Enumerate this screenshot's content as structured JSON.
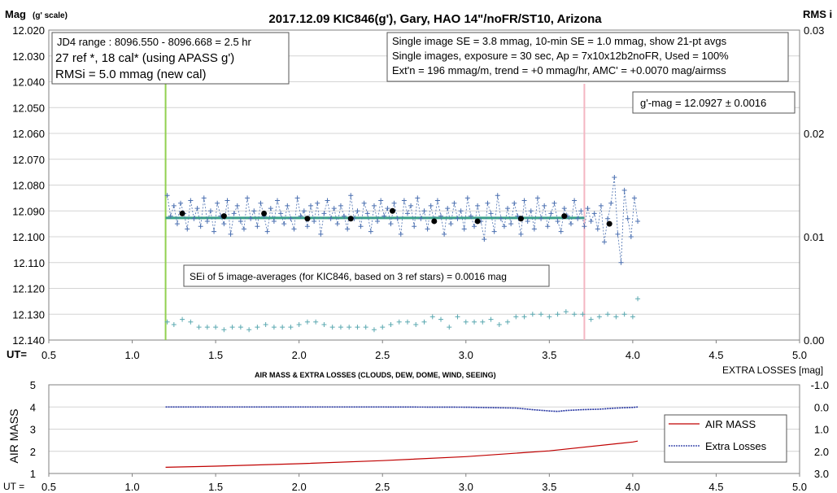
{
  "chart_data": [
    {
      "type": "scatter",
      "title": "2017.12.09  KIC846(g'),  Gary, HAO  14\"/noFR/ST10,  Arizona",
      "ylabel": "Mag",
      "ylabel_sub": "(g' scale)",
      "ylabel_right": "RMS i",
      "xlabel": "UT=",
      "xlim": [
        0.5,
        5.0
      ],
      "ylim": [
        12.02,
        12.14
      ],
      "y_inverted": true,
      "y2lim": [
        0.0,
        0.03
      ],
      "x_ticks": [
        "0.5",
        "1.0",
        "1.5",
        "2.0",
        "2.5",
        "3.0",
        "3.5",
        "4.0",
        "4.5",
        "5.0"
      ],
      "y_ticks": [
        "12.020",
        "12.030",
        "12.040",
        "12.050",
        "12.060",
        "12.070",
        "12.080",
        "12.090",
        "12.100",
        "12.110",
        "12.120",
        "12.130",
        "12.140"
      ],
      "y2_ticks": [
        "0.03",
        "0.02",
        "0.01",
        "0.00"
      ],
      "grid": true,
      "vlines": [
        {
          "x": 1.2,
          "color": "#92d050"
        },
        {
          "x": 3.71,
          "color": "#f4b6c2"
        }
      ],
      "fit_line": {
        "x": [
          1.2,
          3.71
        ],
        "y": 12.0927,
        "color": "#3aa089"
      },
      "series": [
        {
          "name": "single images",
          "color": "#4a6fb0",
          "x": [
            1.21,
            1.23,
            1.25,
            1.27,
            1.29,
            1.31,
            1.33,
            1.35,
            1.37,
            1.39,
            1.41,
            1.43,
            1.45,
            1.47,
            1.49,
            1.51,
            1.53,
            1.55,
            1.57,
            1.59,
            1.61,
            1.63,
            1.65,
            1.67,
            1.69,
            1.71,
            1.73,
            1.75,
            1.77,
            1.79,
            1.81,
            1.83,
            1.85,
            1.87,
            1.89,
            1.91,
            1.93,
            1.95,
            1.97,
            1.99,
            2.01,
            2.03,
            2.05,
            2.07,
            2.09,
            2.11,
            2.13,
            2.15,
            2.17,
            2.19,
            2.21,
            2.23,
            2.25,
            2.27,
            2.29,
            2.31,
            2.33,
            2.35,
            2.37,
            2.39,
            2.41,
            2.43,
            2.45,
            2.47,
            2.49,
            2.51,
            2.53,
            2.55,
            2.57,
            2.59,
            2.61,
            2.63,
            2.65,
            2.67,
            2.69,
            2.71,
            2.73,
            2.75,
            2.77,
            2.79,
            2.81,
            2.83,
            2.85,
            2.87,
            2.89,
            2.91,
            2.93,
            2.95,
            2.97,
            2.99,
            3.01,
            3.03,
            3.05,
            3.07,
            3.09,
            3.11,
            3.13,
            3.15,
            3.17,
            3.19,
            3.21,
            3.23,
            3.25,
            3.27,
            3.29,
            3.31,
            3.33,
            3.35,
            3.37,
            3.39,
            3.41,
            3.43,
            3.45,
            3.47,
            3.49,
            3.51,
            3.53,
            3.55,
            3.57,
            3.59,
            3.61,
            3.63,
            3.65,
            3.67,
            3.69,
            3.71,
            3.73,
            3.75,
            3.77,
            3.79,
            3.81,
            3.83,
            3.85,
            3.87,
            3.89,
            3.91,
            3.93,
            3.95,
            3.97,
            3.99,
            4.01,
            4.03
          ],
          "y": [
            12.084,
            12.092,
            12.088,
            12.095,
            12.087,
            12.091,
            12.097,
            12.086,
            12.093,
            12.089,
            12.096,
            12.085,
            12.094,
            12.09,
            12.098,
            12.087,
            12.092,
            12.095,
            12.086,
            12.099,
            12.091,
            12.088,
            12.094,
            12.097,
            12.085,
            12.093,
            12.09,
            12.096,
            12.087,
            12.092,
            12.098,
            12.089,
            12.094,
            12.086,
            12.091,
            12.095,
            12.088,
            12.093,
            12.097,
            12.085,
            12.092,
            12.09,
            12.096,
            12.088,
            12.094,
            12.087,
            12.099,
            12.091,
            12.086,
            12.093,
            12.089,
            12.095,
            12.088,
            12.092,
            12.097,
            12.084,
            12.093,
            12.09,
            12.096,
            12.087,
            12.091,
            12.098,
            12.088,
            12.094,
            12.086,
            12.092,
            12.089,
            12.095,
            12.087,
            12.093,
            12.099,
            12.086,
            12.091,
            12.088,
            12.096,
            12.085,
            12.093,
            12.09,
            12.097,
            12.088,
            12.094,
            12.086,
            12.092,
            12.099,
            12.089,
            12.095,
            12.087,
            12.093,
            12.09,
            12.097,
            12.085,
            12.092,
            12.096,
            12.088,
            12.094,
            12.101,
            12.087,
            12.091,
            12.098,
            12.084,
            12.093,
            12.096,
            12.089,
            12.095,
            12.087,
            12.092,
            12.099,
            12.086,
            12.094,
            12.09,
            12.097,
            12.085,
            12.093,
            12.088,
            12.096,
            12.091,
            12.087,
            12.094,
            12.098,
            12.089,
            12.092,
            12.095,
            12.086,
            12.093,
            12.09,
            12.096,
            12.089,
            12.094,
            12.091,
            12.097,
            12.088,
            12.102,
            12.093,
            12.087,
            12.077,
            12.099,
            12.11,
            12.082,
            12.093,
            12.1,
            12.085,
            12.094
          ]
        },
        {
          "name": "21-pt avgs",
          "color": "#000000",
          "x": [
            1.3,
            1.55,
            1.79,
            2.05,
            2.31,
            2.56,
            2.81,
            3.07,
            3.33,
            3.59,
            3.86
          ],
          "y": [
            12.091,
            12.092,
            12.091,
            12.093,
            12.093,
            12.09,
            12.094,
            12.094,
            12.093,
            12.092,
            12.095
          ]
        },
        {
          "name": "extra losses trace",
          "color": "#5aa8b0",
          "x": [
            1.21,
            1.25,
            1.3,
            1.35,
            1.4,
            1.45,
            1.5,
            1.55,
            1.6,
            1.65,
            1.7,
            1.75,
            1.8,
            1.85,
            1.9,
            1.95,
            2.0,
            2.05,
            2.1,
            2.15,
            2.2,
            2.25,
            2.3,
            2.35,
            2.4,
            2.45,
            2.5,
            2.55,
            2.6,
            2.65,
            2.7,
            2.75,
            2.8,
            2.85,
            2.9,
            2.95,
            3.0,
            3.05,
            3.1,
            3.15,
            3.2,
            3.25,
            3.3,
            3.35,
            3.4,
            3.45,
            3.5,
            3.55,
            3.6,
            3.65,
            3.7,
            3.75,
            3.8,
            3.85,
            3.9,
            3.95,
            4.0,
            4.03
          ],
          "y": [
            12.133,
            12.134,
            12.132,
            12.133,
            12.135,
            12.135,
            12.135,
            12.136,
            12.135,
            12.135,
            12.136,
            12.135,
            12.134,
            12.135,
            12.135,
            12.135,
            12.134,
            12.133,
            12.133,
            12.134,
            12.135,
            12.135,
            12.135,
            12.135,
            12.135,
            12.136,
            12.135,
            12.134,
            12.133,
            12.133,
            12.134,
            12.133,
            12.131,
            12.132,
            12.135,
            12.131,
            12.133,
            12.133,
            12.133,
            12.132,
            12.134,
            12.133,
            12.131,
            12.131,
            12.13,
            12.13,
            12.131,
            12.13,
            12.129,
            12.13,
            12.13,
            12.132,
            12.131,
            12.13,
            12.131,
            12.13,
            12.131,
            12.124
          ]
        }
      ],
      "annotations": {
        "jd_range": "JD4 range : 8096.550 - 8096.668 = 2.5  hr",
        "ref_stars": "27 ref *, 18 cal* (using APASS g')",
        "rmsi": "RMSi = 5.0 mmag (new cal)",
        "se_line1": "Single image SE = 3.8 mmag, 10-min SE = 1.0 mmag, show  21-pt avgs",
        "se_line2": "Single images, exposure = 30 sec, Ap = 7x10x12b2noFR,  Used = 100%",
        "se_line3": "Ext'n = 196 mmag/m, trend =  +0 mmag/hr, AMC' = +0.0070 mag/airmss",
        "gmag": "g'-mag = 12.0927 ± 0.0016",
        "sei": "SEi of 5 image-averages (for KIC846, based on 3 ref stars) = 0.0016  mag"
      }
    },
    {
      "type": "line",
      "title": "AIR MASS & EXTRA LOSSES (CLOUDS, DEW, DOME, WIND, SEEING)",
      "ylabel": "AIR MASS",
      "ylabel_right": "EXTRA LOSSES [mag]",
      "xlabel": "UT =",
      "xlim": [
        0.5,
        5.0
      ],
      "ylim": [
        1,
        5
      ],
      "y2lim": [
        3.0,
        -1.0
      ],
      "x_ticks": [
        "0.5",
        "1.0",
        "1.5",
        "2.0",
        "2.5",
        "3.0",
        "3.5",
        "4.0",
        "4.5",
        "5.0"
      ],
      "y_ticks": [
        "5",
        "4",
        "3",
        "2",
        "1"
      ],
      "y2_ticks": [
        "-1.0",
        "0.0",
        "1.0",
        "2.0",
        "3.0"
      ],
      "legend": "right",
      "series": [
        {
          "name": "AIR MASS",
          "color": "#c00000",
          "axis": "left",
          "x": [
            1.2,
            1.5,
            2.0,
            2.5,
            3.0,
            3.5,
            4.0,
            4.03
          ],
          "y": [
            1.28,
            1.33,
            1.44,
            1.58,
            1.76,
            2.02,
            2.42,
            2.46
          ]
        },
        {
          "name": "Extra Losses",
          "color": "#1f2f9f",
          "axis": "right",
          "x": [
            1.2,
            1.5,
            2.0,
            2.5,
            3.0,
            3.3,
            3.4,
            3.5,
            3.55,
            3.6,
            3.7,
            3.8,
            3.9,
            4.0,
            4.03
          ],
          "y": [
            0.0,
            0.0,
            0.0,
            0.0,
            0.01,
            0.05,
            0.12,
            0.18,
            0.2,
            0.16,
            0.12,
            0.1,
            0.05,
            0.02,
            0.0
          ]
        }
      ]
    }
  ]
}
